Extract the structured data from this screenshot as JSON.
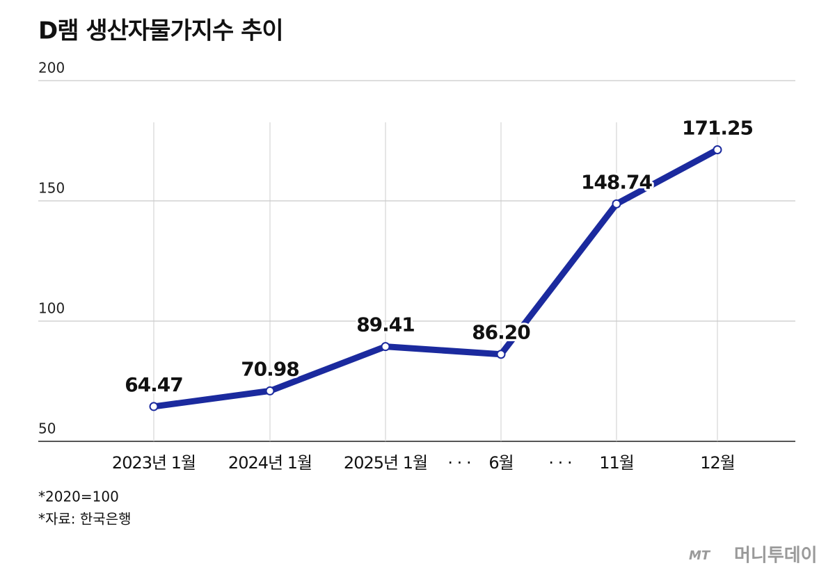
{
  "chart_data": {
    "type": "line",
    "title": "D램 생산자물가지수 추이",
    "categories": [
      "2023년 1월",
      "2024년 1월",
      "2025년 1월",
      "6월",
      "11월",
      "12월"
    ],
    "series": [
      {
        "name": "D램 생산자물가지수",
        "color": "#1b2a9e",
        "values": [
          64.47,
          70.98,
          89.41,
          86.2,
          148.74,
          171.25
        ],
        "value_labels": [
          "64.47",
          "70.98",
          "89.41",
          "86.20",
          "148.74",
          "171.25"
        ]
      }
    ],
    "separators": [
      "· · ·",
      "· · ·"
    ],
    "ylim": [
      50,
      200
    ],
    "yticks": [
      50,
      100,
      150,
      200
    ],
    "grid": true,
    "notes": [
      "*2020=100",
      "*자료: 한국은행"
    ],
    "logo": [
      "MT",
      "머니투데이"
    ]
  }
}
